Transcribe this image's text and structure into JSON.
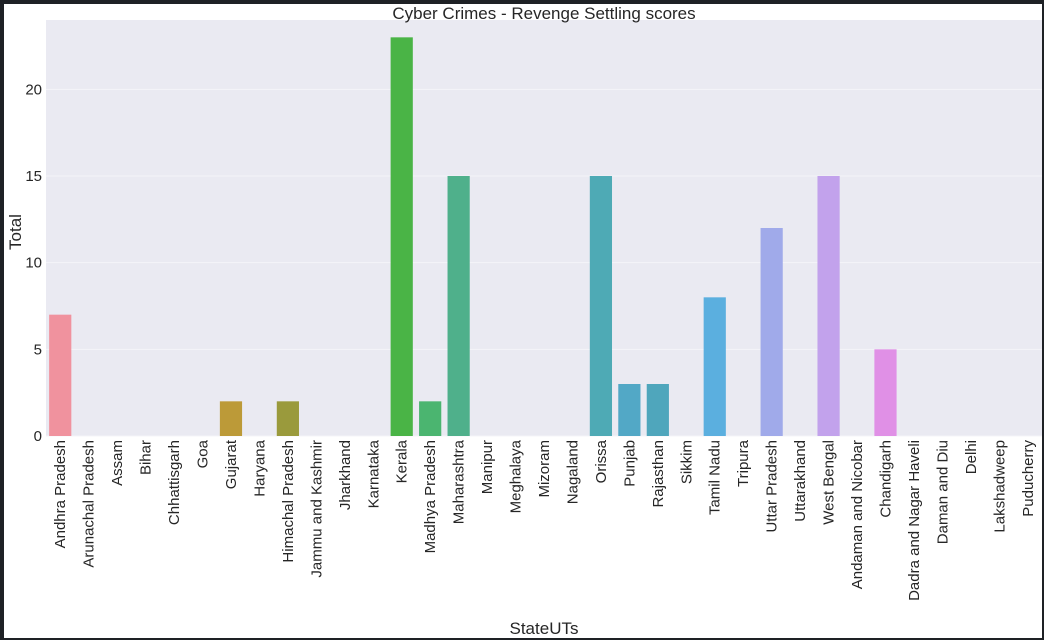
{
  "chart_data": {
    "type": "bar",
    "title": "Cyber Crimes - Revenge Settling scores",
    "xlabel": "StateUTs",
    "ylabel": "Total",
    "ylim": [
      0,
      24
    ],
    "yticks": [
      0,
      5,
      10,
      15,
      20
    ],
    "grid": true,
    "categories": [
      "Andhra Pradesh",
      "Arunachal Pradesh",
      "Assam",
      "Bihar",
      "Chhattisgarh",
      "Goa",
      "Gujarat",
      "Haryana",
      "Himachal Pradesh",
      "Jammu and Kashmir",
      "Jharkhand",
      "Karnataka",
      "Kerala",
      "Madhya Pradesh",
      "Maharashtra",
      "Manipur",
      "Meghalaya",
      "Mizoram",
      "Nagaland",
      "Orissa",
      "Punjab",
      "Rajasthan",
      "Sikkim",
      "Tamil Nadu",
      "Tripura",
      "Uttar Pradesh",
      "Uttarakhand",
      "West Bengal",
      "Andaman and Nicobar",
      "Chandigarh",
      "Dadra and Nagar Haveli",
      "Daman and Diu",
      "Delhi",
      "Lakshadweep",
      "Puducherry"
    ],
    "values": [
      7,
      0,
      0,
      0,
      0,
      0,
      2,
      0,
      2,
      0,
      0,
      0,
      23,
      2,
      15,
      0,
      0,
      0,
      0,
      15,
      3,
      3,
      0,
      8,
      0,
      12,
      0,
      15,
      0,
      5,
      0,
      0,
      0,
      0,
      0
    ],
    "colors": [
      "#f0929e",
      "#ee9585",
      "#e69d6a",
      "#d8a556",
      "#c9a94a",
      "#b9ad41",
      "#bc9a38",
      "#a8a73a",
      "#9a9a3c",
      "#86b43a",
      "#5fba47",
      "#4cb75a",
      "#4ab446",
      "#4bb570",
      "#4fb08b",
      "#4eaf9a",
      "#4eada6",
      "#4eaab0",
      "#4eaab5",
      "#4eaab5",
      "#52a8c6",
      "#4fa6bc",
      "#55a7d1",
      "#5bafdf",
      "#7aaee6",
      "#a0aaea",
      "#b1a3eb",
      "#c2a2ec",
      "#d39ceb",
      "#e090e6",
      "#e891d3",
      "#ee93c4",
      "#f096b8",
      "#f299aa",
      "#f29aa0"
    ],
    "plot_background": "#eaeaf2",
    "grid_color": "#f4f4f8"
  }
}
